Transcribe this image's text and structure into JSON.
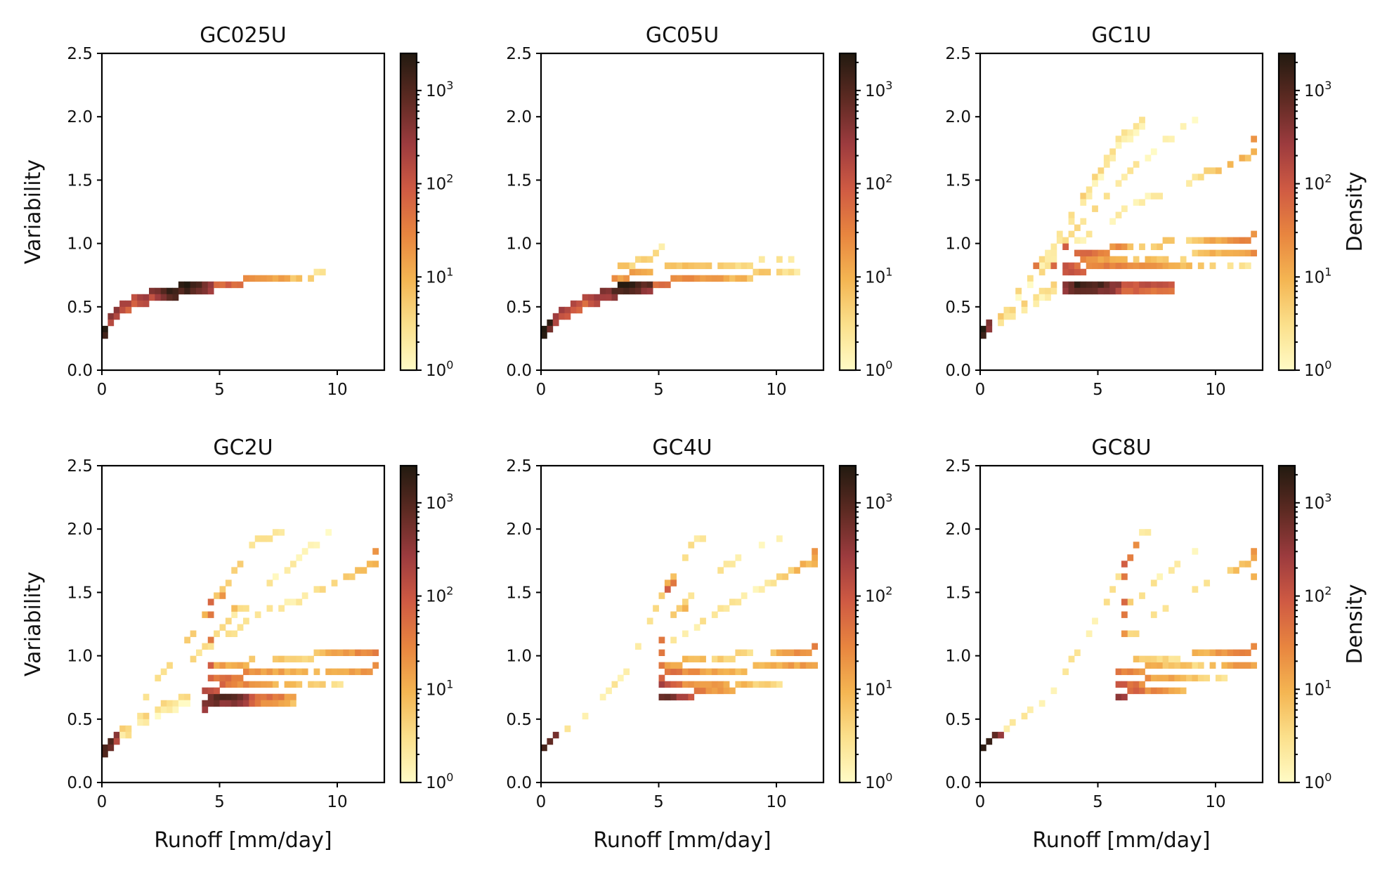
{
  "colorbar": {
    "label": "Density",
    "scale": "log",
    "range": [
      1,
      2500
    ],
    "tick_values": [
      1,
      10,
      100,
      1000
    ],
    "tick_labels": [
      [
        "10",
        "0"
      ],
      [
        "10",
        "1"
      ],
      [
        "10",
        "2"
      ],
      [
        "10",
        "3"
      ]
    ],
    "colormap": [
      "#fffbc6",
      "#fbe08c",
      "#f4b552",
      "#e8853f",
      "#cf5a43",
      "#9c3b3e",
      "#5d2a22",
      "#221a10"
    ]
  },
  "chart_data": [
    {
      "type": "heatmap",
      "title": "GC025U",
      "xlabel": "",
      "ylabel": "Variability",
      "xlim": [
        0,
        12
      ],
      "ylim": [
        0,
        2.5
      ],
      "xticks": [
        0,
        5,
        10
      ],
      "yticks": [
        0.0,
        0.5,
        1.0,
        1.5,
        2.0,
        2.5
      ],
      "show_colorbar_label": false,
      "bands": [
        {
          "x": [
            0.0,
            0.3,
            0.8,
            1.5,
            2.5,
            3.5,
            4.5
          ],
          "y": [
            0.3,
            0.42,
            0.5,
            0.57,
            0.63,
            0.66,
            0.68
          ],
          "thickness": 2,
          "density": [
            6000,
            400,
            200,
            150,
            500,
            3000,
            400
          ]
        },
        {
          "x": [
            4.5,
            6.0,
            8.0,
            9.4
          ],
          "y": [
            0.68,
            0.7,
            0.73,
            0.76
          ],
          "thickness": 1,
          "density": [
            100,
            40,
            8,
            2
          ]
        }
      ],
      "scatter": []
    },
    {
      "type": "heatmap",
      "title": "GC05U",
      "xlabel": "",
      "ylabel": "",
      "xlim": [
        0,
        12
      ],
      "ylim": [
        0,
        2.5
      ],
      "xticks": [
        0,
        5,
        10
      ],
      "yticks": [
        0.0,
        0.5,
        1.0,
        1.5,
        2.0,
        2.5
      ],
      "show_colorbar_label": false,
      "bands": [
        {
          "x": [
            0.0,
            0.5,
            1.2,
            2.0,
            2.8,
            3.5,
            4.5
          ],
          "y": [
            0.3,
            0.42,
            0.5,
            0.57,
            0.63,
            0.67,
            0.68
          ],
          "thickness": 2,
          "density": [
            6000,
            300,
            150,
            150,
            400,
            2000,
            800
          ]
        },
        {
          "x": [
            4.5,
            6.5,
            9.0,
            11.0
          ],
          "y": [
            0.68,
            0.72,
            0.75,
            0.78
          ],
          "thickness": 1,
          "density": [
            60,
            20,
            6,
            2
          ]
        },
        {
          "x": [
            3.0,
            5.0,
            7.5,
            10.5
          ],
          "y": [
            0.72,
            0.8,
            0.83,
            0.87
          ],
          "thickness": 1,
          "density": [
            20,
            8,
            4,
            2
          ]
        },
        {
          "x": [
            3.0,
            4.5,
            5.2
          ],
          "y": [
            0.8,
            0.88,
            0.96
          ],
          "thickness": 1,
          "density": [
            6,
            4,
            2
          ]
        }
      ],
      "scatter": []
    },
    {
      "type": "heatmap",
      "title": "GC1U",
      "xlabel": "",
      "ylabel": "",
      "xlim": [
        0,
        12
      ],
      "ylim": [
        0,
        2.5
      ],
      "xticks": [
        0,
        5,
        10
      ],
      "yticks": [
        0.0,
        0.5,
        1.0,
        1.5,
        2.0,
        2.5
      ],
      "show_colorbar_label": true,
      "bands": [
        {
          "x": [
            0.0,
            0.5,
            1.5,
            2.5,
            3.5
          ],
          "y": [
            0.3,
            0.4,
            0.5,
            0.6,
            0.68
          ],
          "thickness": 2,
          "density": [
            3000,
            6,
            4,
            3,
            6
          ]
        },
        {
          "x": [
            1.5,
            3.0,
            4.5,
            6.0,
            7.0
          ],
          "y": [
            0.6,
            0.95,
            1.4,
            1.85,
            1.97
          ],
          "thickness": 2,
          "density": [
            3,
            3,
            4,
            3,
            2
          ]
        },
        {
          "x": [
            2.5,
            4.5,
            6.5,
            9.0
          ],
          "y": [
            0.75,
            1.2,
            1.6,
            1.97
          ],
          "thickness": 1,
          "density": [
            3,
            3,
            2,
            1
          ]
        },
        {
          "x": [
            4.0,
            6.5,
            9.0,
            11.5
          ],
          "y": [
            1.0,
            1.3,
            1.5,
            1.7
          ],
          "thickness": 1,
          "density": [
            2,
            2,
            2,
            10
          ]
        },
        {
          "x": [
            3.5,
            4.3,
            6.0,
            8.0
          ],
          "y": [
            0.66,
            0.67,
            0.68,
            0.69
          ],
          "thickness": 2,
          "density": [
            200,
            2000,
            150,
            100
          ]
        },
        {
          "x": [
            3.5,
            4.5,
            6.5,
            9.0,
            11.5
          ],
          "y": [
            0.75,
            0.8,
            0.8,
            0.8,
            0.8
          ],
          "thickness": 1,
          "density": [
            150,
            40,
            20,
            6,
            2
          ]
        },
        {
          "x": [
            3.5,
            4.5,
            6.5,
            9.0,
            11.5
          ],
          "y": [
            0.82,
            0.86,
            0.88,
            0.9,
            0.92
          ],
          "thickness": 1,
          "density": [
            100,
            20,
            8,
            4,
            20
          ]
        },
        {
          "x": [
            4.0,
            6.5,
            9.0,
            11.5
          ],
          "y": [
            0.9,
            0.98,
            1.02,
            1.05
          ],
          "thickness": 1,
          "density": [
            60,
            8,
            4,
            30
          ]
        }
      ],
      "scatter": [
        {
          "x": 3.6,
          "y": 0.96,
          "density": 80
        },
        {
          "x": 3.2,
          "y": 0.82,
          "density": 60
        },
        {
          "x": 2.3,
          "y": 0.81,
          "density": 40
        },
        {
          "x": 11.6,
          "y": 1.82,
          "density": 20
        },
        {
          "x": 11.6,
          "y": 1.7,
          "density": 10
        }
      ]
    },
    {
      "type": "heatmap",
      "title": "GC2U",
      "xlabel": "Runoff [mm/day]",
      "ylabel": "Variability",
      "xlim": [
        0,
        12
      ],
      "ylim": [
        0,
        2.5
      ],
      "xticks": [
        0,
        5,
        10
      ],
      "yticks": [
        0.0,
        0.5,
        1.0,
        1.5,
        2.0,
        2.5
      ],
      "show_colorbar_label": false,
      "bands": [
        {
          "x": [
            0.0,
            0.8,
            2.0,
            3.5
          ],
          "y": [
            0.28,
            0.4,
            0.55,
            0.68
          ],
          "thickness": 2,
          "density": [
            2000,
            6,
            3,
            3
          ]
        },
        {
          "x": [
            1.5,
            3.0,
            4.5,
            6.5,
            7.5
          ],
          "y": [
            0.6,
            0.95,
            1.35,
            1.9,
            1.97
          ],
          "thickness": 1,
          "density": [
            3,
            3,
            8,
            3,
            2
          ]
        },
        {
          "x": [
            3.5,
            5.0,
            7.0,
            9.5
          ],
          "y": [
            0.9,
            1.2,
            1.55,
            1.95
          ],
          "thickness": 1,
          "density": [
            3,
            3,
            2,
            1
          ]
        },
        {
          "x": [
            4.5,
            6.5,
            9.0,
            11.5
          ],
          "y": [
            1.05,
            1.3,
            1.5,
            1.72
          ],
          "thickness": 1,
          "density": [
            3,
            2,
            2,
            10
          ]
        },
        {
          "x": [
            4.3,
            4.8,
            6.5,
            8.0
          ],
          "y": [
            0.64,
            0.66,
            0.68,
            0.69
          ],
          "thickness": 2,
          "density": [
            300,
            1200,
            60,
            20
          ]
        },
        {
          "x": [
            4.3,
            5.5,
            7.5,
            10.0
          ],
          "y": [
            0.74,
            0.76,
            0.76,
            0.76
          ],
          "thickness": 1,
          "density": [
            200,
            30,
            10,
            3
          ]
        },
        {
          "x": [
            4.5,
            6.5,
            9.0,
            11.5
          ],
          "y": [
            0.82,
            0.86,
            0.88,
            0.9
          ],
          "thickness": 1,
          "density": [
            60,
            20,
            6,
            20
          ]
        },
        {
          "x": [
            4.5,
            6.5,
            9.0,
            11.5
          ],
          "y": [
            0.9,
            0.96,
            1.0,
            1.04
          ],
          "thickness": 1,
          "density": [
            20,
            6,
            4,
            30
          ]
        }
      ],
      "scatter": [
        {
          "x": 4.6,
          "y": 0.94,
          "density": 80
        },
        {
          "x": 4.6,
          "y": 1.12,
          "density": 40
        },
        {
          "x": 4.6,
          "y": 1.32,
          "density": 40
        },
        {
          "x": 4.6,
          "y": 1.44,
          "density": 60
        },
        {
          "x": 5.0,
          "y": 1.48,
          "density": 20
        },
        {
          "x": 5.5,
          "y": 1.35,
          "density": 8
        },
        {
          "x": 11.6,
          "y": 1.82,
          "density": 20
        },
        {
          "x": 11.6,
          "y": 1.7,
          "density": 10
        }
      ]
    },
    {
      "type": "heatmap",
      "title": "GC4U",
      "xlabel": "Runoff [mm/day]",
      "ylabel": "",
      "xlim": [
        0,
        12
      ],
      "ylim": [
        0,
        2.5
      ],
      "xticks": [
        0,
        5,
        10
      ],
      "yticks": [
        0.0,
        0.5,
        1.0,
        1.5,
        2.0,
        2.5
      ],
      "show_colorbar_label": false,
      "bands": [
        {
          "x": [
            0.0,
            0.8,
            2.0,
            3.5,
            4.8
          ],
          "y": [
            0.28,
            0.4,
            0.55,
            0.85,
            1.35
          ],
          "thickness": 1,
          "density": [
            2000,
            3,
            2,
            2,
            3
          ]
        },
        {
          "x": [
            4.8,
            5.5,
            6.5,
            7.2
          ],
          "y": [
            1.35,
            1.6,
            1.9,
            1.97
          ],
          "thickness": 1,
          "density": [
            3,
            8,
            3,
            2
          ]
        },
        {
          "x": [
            5.5,
            7.0,
            9.0,
            10.5
          ],
          "y": [
            1.3,
            1.6,
            1.85,
            1.97
          ],
          "thickness": 1,
          "density": [
            4,
            3,
            2,
            1
          ]
        },
        {
          "x": [
            5.5,
            7.5,
            9.5,
            11.5
          ],
          "y": [
            1.1,
            1.35,
            1.55,
            1.75
          ],
          "thickness": 1,
          "density": [
            3,
            2,
            2,
            10
          ]
        },
        {
          "x": [
            5.0,
            5.3,
            6.5,
            8.0
          ],
          "y": [
            0.68,
            0.68,
            0.7,
            0.71
          ],
          "thickness": 1,
          "density": [
            1200,
            600,
            40,
            10
          ]
        },
        {
          "x": [
            5.0,
            6.0,
            8.0,
            10.0
          ],
          "y": [
            0.76,
            0.76,
            0.77,
            0.78
          ],
          "thickness": 1,
          "density": [
            200,
            30,
            10,
            3
          ]
        },
        {
          "x": [
            5.0,
            6.5,
            9.0,
            11.5
          ],
          "y": [
            0.84,
            0.88,
            0.9,
            0.92
          ],
          "thickness": 1,
          "density": [
            60,
            20,
            6,
            20
          ]
        },
        {
          "x": [
            5.0,
            7.0,
            9.5,
            11.5
          ],
          "y": [
            0.92,
            0.98,
            1.02,
            1.05
          ],
          "thickness": 1,
          "density": [
            20,
            6,
            3,
            30
          ]
        }
      ],
      "scatter": [
        {
          "x": 5.2,
          "y": 0.94,
          "density": 40
        },
        {
          "x": 5.2,
          "y": 1.0,
          "density": 40
        },
        {
          "x": 5.2,
          "y": 1.1,
          "density": 40
        },
        {
          "x": 5.3,
          "y": 1.5,
          "density": 80
        },
        {
          "x": 5.5,
          "y": 1.56,
          "density": 40
        },
        {
          "x": 6.0,
          "y": 1.4,
          "density": 10
        },
        {
          "x": 11.6,
          "y": 1.82,
          "density": 20
        },
        {
          "x": 11.6,
          "y": 1.7,
          "density": 10
        }
      ]
    },
    {
      "type": "heatmap",
      "title": "GC8U",
      "xlabel": "Runoff [mm/day]",
      "ylabel": "",
      "xlim": [
        0,
        12
      ],
      "ylim": [
        0,
        2.5
      ],
      "xticks": [
        0,
        5,
        10
      ],
      "yticks": [
        0.0,
        0.5,
        1.0,
        1.5,
        2.0,
        2.5
      ],
      "show_colorbar_label": true,
      "bands": [
        {
          "x": [
            0.0,
            1.0,
            3.0,
            5.0,
            6.2
          ],
          "y": [
            0.28,
            0.4,
            0.7,
            1.3,
            1.72
          ],
          "thickness": 1,
          "density": [
            2000,
            2,
            2,
            2,
            4
          ]
        },
        {
          "x": [
            6.2,
            6.8,
            7.2
          ],
          "y": [
            1.72,
            1.95,
            1.97
          ],
          "thickness": 1,
          "density": [
            60,
            3,
            2
          ]
        },
        {
          "x": [
            6.3,
            8.0,
            10.0,
            11.5
          ],
          "y": [
            1.15,
            1.4,
            1.6,
            1.75
          ],
          "thickness": 1,
          "density": [
            3,
            2,
            2,
            10
          ]
        },
        {
          "x": [
            6.3,
            7.5,
            9.0
          ],
          "y": [
            1.4,
            1.6,
            1.8
          ],
          "thickness": 1,
          "density": [
            4,
            2,
            1
          ]
        },
        {
          "x": [
            5.9,
            6.3,
            7.0,
            8.5
          ],
          "y": [
            0.68,
            0.7,
            0.72,
            0.73
          ],
          "thickness": 1,
          "density": [
            300,
            100,
            30,
            10
          ]
        },
        {
          "x": [
            5.9,
            7.0,
            9.0,
            10.5
          ],
          "y": [
            0.78,
            0.8,
            0.8,
            0.8
          ],
          "thickness": 1,
          "density": [
            100,
            20,
            6,
            2
          ]
        },
        {
          "x": [
            5.9,
            7.0,
            9.5,
            11.5
          ],
          "y": [
            0.86,
            0.9,
            0.92,
            0.93
          ],
          "thickness": 1,
          "density": [
            40,
            10,
            4,
            20
          ]
        },
        {
          "x": [
            6.5,
            8.5,
            11.5
          ],
          "y": [
            0.96,
            1.0,
            1.05
          ],
          "thickness": 1,
          "density": [
            6,
            3,
            30
          ]
        }
      ],
      "scatter": [
        {
          "x": 6.2,
          "y": 1.45,
          "density": 60
        },
        {
          "x": 6.2,
          "y": 1.3,
          "density": 40
        },
        {
          "x": 6.2,
          "y": 1.2,
          "density": 20
        },
        {
          "x": 6.1,
          "y": 1.62,
          "density": 40
        },
        {
          "x": 6.0,
          "y": 0.75,
          "density": 100
        },
        {
          "x": 11.6,
          "y": 1.82,
          "density": 20
        },
        {
          "x": 11.6,
          "y": 1.64,
          "density": 10
        }
      ]
    }
  ]
}
